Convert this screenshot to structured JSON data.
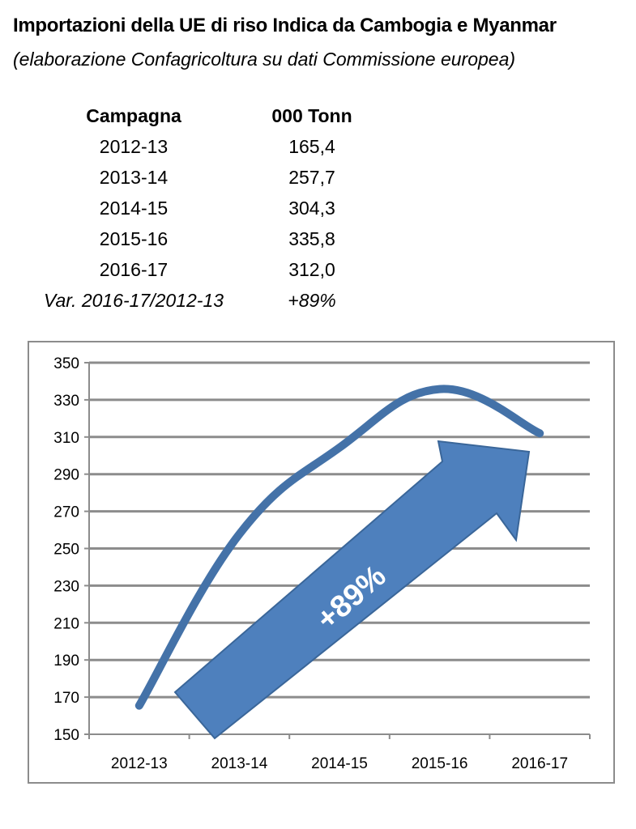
{
  "header": {
    "title": "Importazioni della UE di riso Indica da Cambogia e Myanmar",
    "subtitle": "(elaborazione Confagricoltura su dati Commissione europea)"
  },
  "table": {
    "col_headers": [
      "Campagna",
      "000 Tonn"
    ],
    "rows": [
      [
        "2012-13",
        "165,4"
      ],
      [
        "2013-14",
        "257,7"
      ],
      [
        "2014-15",
        "304,3"
      ],
      [
        "2015-16",
        "335,8"
      ],
      [
        "2016-17",
        "312,0"
      ]
    ],
    "variation": [
      "Var. 2016-17/2012-13",
      "+89%"
    ]
  },
  "chart_data": {
    "type": "line",
    "title": "",
    "xlabel": "",
    "ylabel": "",
    "categories": [
      "2012-13",
      "2013-14",
      "2014-15",
      "2015-16",
      "2016-17"
    ],
    "series": [
      {
        "values": [
          165.4,
          257.7,
          304.3,
          335.8,
          312.0
        ]
      }
    ],
    "ylim": [
      150,
      350
    ],
    "yticks": [
      150,
      170,
      190,
      210,
      230,
      250,
      270,
      290,
      310,
      330,
      350
    ],
    "grid": true,
    "legend": "none",
    "annotation": {
      "label": "+89%",
      "shape": "arrow"
    },
    "colors": {
      "line": "#4472a8",
      "arrow": "#4e80bd",
      "arrow_edge": "#3a6699",
      "grid": "#8c8c8c"
    }
  }
}
